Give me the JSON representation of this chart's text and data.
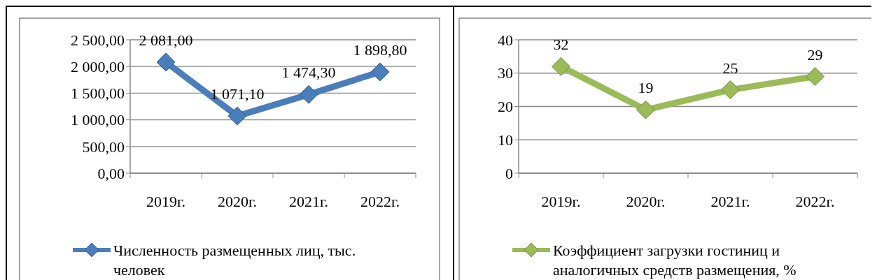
{
  "chart_data": [
    {
      "type": "line",
      "categories": [
        "2019г.",
        "2020г.",
        "2021г.",
        "2022г."
      ],
      "series": [
        {
          "name": "Численность размещенных лиц, тыс. человек",
          "color": "#4a7ebb",
          "values": [
            2081.0,
            1071.1,
            1474.3,
            1898.8
          ],
          "value_labels": [
            "2 081,00",
            "1 071,10",
            "1 474,30",
            "1 898,80"
          ]
        }
      ],
      "ylim": [
        0,
        2500
      ],
      "yticks": [
        {
          "value": 0,
          "label": "0,00"
        },
        {
          "value": 500,
          "label": "500,00"
        },
        {
          "value": 1000,
          "label": "1 000,00"
        },
        {
          "value": 1500,
          "label": "1 500,00"
        },
        {
          "value": 2000,
          "label": "2 000,00"
        },
        {
          "value": 2500,
          "label": "2 500,00"
        }
      ],
      "grid": "y",
      "legend": "bottom",
      "marker": "diamond",
      "line_style": "solid"
    },
    {
      "type": "line",
      "categories": [
        "2019г.",
        "2020г.",
        "2021г.",
        "2022г."
      ],
      "series": [
        {
          "name": "Коэффициент загрузки гостиниц и аналогичных средств размещения, %",
          "color": "#9bbb59",
          "values": [
            32,
            19,
            25,
            29
          ]
        }
      ],
      "ylim": [
        0,
        40
      ],
      "yticks": [
        0,
        10,
        20,
        30,
        40
      ],
      "grid": "y",
      "legend": "bottom",
      "marker": "diamond",
      "line_style": "solid",
      "data_labels": true
    }
  ]
}
